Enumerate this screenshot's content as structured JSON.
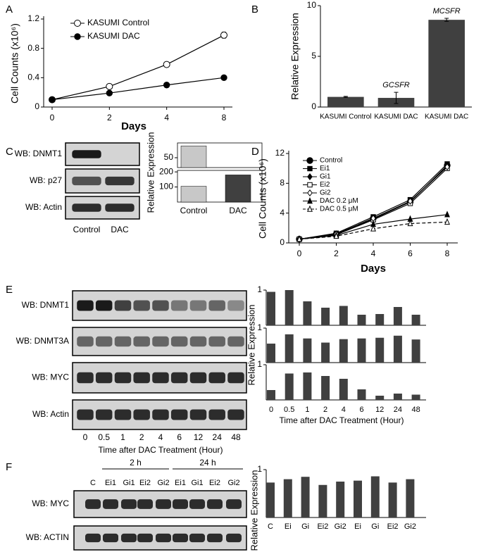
{
  "chart_data": [
    {
      "label": "A",
      "type": "line",
      "ylabel": "Cell Counts (x10⁶)",
      "xlabel": "Days",
      "categories": [
        "0",
        "2",
        "4",
        "8"
      ],
      "ylim": [
        0,
        1.2
      ],
      "yticks": [
        0,
        0.4,
        0.8,
        1.2
      ],
      "legend": "upper left",
      "series": [
        {
          "name": "KASUMI Control",
          "color": "#000000",
          "marker": "open-circle",
          "values": [
            0.1,
            0.28,
            0.58,
            0.98
          ],
          "errors": [
            0,
            0.02,
            0.02,
            0.04
          ]
        },
        {
          "name": "KASUMI DAC",
          "color": "#000000",
          "marker": "circle",
          "values": [
            0.1,
            0.19,
            0.3,
            0.4
          ],
          "errors": [
            0,
            0.01,
            0.01,
            0.01
          ]
        }
      ]
    },
    {
      "label": "B",
      "type": "bar",
      "ylabel": "Relative Expression",
      "categories": [
        "KASUMI Control",
        "KASUMI DAC",
        "KASUMI DAC"
      ],
      "values": [
        1,
        0.9,
        8.6
      ],
      "errors": [
        0.05,
        0.55,
        0.15
      ],
      "annotations": [
        null,
        "GCSFR",
        "MCSFR"
      ],
      "color": "#404040",
      "ylim": [
        0,
        10
      ],
      "yticks": [
        0,
        5,
        10
      ]
    },
    {
      "label": "C",
      "type": "blot-bar",
      "blot": {
        "rows": [
          "WB: DNMT1",
          "WB: p27",
          "WB: Actin"
        ]
      },
      "categories": [
        "Control",
        "DAC"
      ],
      "colors": [
        "#c8c8c8",
        "#404040"
      ],
      "ylabel": "Relative Expression",
      "panels": [
        {
          "values": [
            110,
            0
          ],
          "ylim": [
            0,
            125
          ],
          "yticks": [
            50
          ]
        },
        {
          "values": [
            105,
            180
          ],
          "ylim": [
            0,
            210
          ],
          "yticks": [
            100,
            200
          ]
        }
      ]
    },
    {
      "label": "D",
      "type": "line",
      "ylabel": "Cell Counts (x10⁶)",
      "xlabel": "Days",
      "categories": [
        "0",
        "2",
        "4",
        "6",
        "8"
      ],
      "ylim": [
        0,
        12
      ],
      "yticks": [
        0,
        4,
        8,
        12
      ],
      "legend": "upper left",
      "series": [
        {
          "name": "Control",
          "color": "#000000",
          "marker": "circle",
          "values": [
            0.5,
            1.2,
            3.3,
            5.5,
            10.4
          ]
        },
        {
          "name": "Ei1",
          "color": "#000000",
          "marker": "square",
          "values": [
            0.5,
            1.3,
            3.5,
            5.8,
            10.6
          ]
        },
        {
          "name": "Gi1",
          "color": "#000000",
          "marker": "diamond",
          "values": [
            0.5,
            1.2,
            3.2,
            5.5,
            10.3
          ]
        },
        {
          "name": "Ei2",
          "color": "#000000",
          "marker": "open-square",
          "values": [
            0.5,
            1.1,
            3.1,
            5.3,
            10.0
          ]
        },
        {
          "name": "Gi2",
          "color": "#000000",
          "marker": "open-diamond",
          "values": [
            0.5,
            1.2,
            3.3,
            5.6,
            10.2
          ]
        },
        {
          "name": "DAC 0.2 μM",
          "color": "#000000",
          "marker": "triangle",
          "values": [
            0.5,
            1.0,
            2.5,
            3.2,
            3.8
          ]
        },
        {
          "name": "DAC 0.5 μM",
          "color": "#000000",
          "marker": "open-triangle",
          "dash": true,
          "values": [
            0.5,
            0.9,
            1.9,
            2.6,
            2.8
          ]
        }
      ]
    },
    {
      "label": "E",
      "type": "blot-bar",
      "blot": {
        "rows": [
          "WB: DNMT1",
          "WB: DNMT3A",
          "WB: MYC",
          "WB: Actin"
        ]
      },
      "categories": [
        "0",
        "0.5",
        "1",
        "2",
        "4",
        "6",
        "12",
        "24",
        "48"
      ],
      "xlabel": "Time after DAC Treatment (Hour)",
      "ylabel": "Relative Expression",
      "color": "#404040",
      "panels": [
        {
          "values": [
            0.95,
            1.0,
            0.68,
            0.5,
            0.55,
            0.3,
            0.32,
            0.52,
            0.3
          ],
          "ylim": [
            0,
            1
          ],
          "yticks": [
            1
          ]
        },
        {
          "values": [
            0.55,
            0.82,
            0.7,
            0.58,
            0.68,
            0.7,
            0.72,
            0.78,
            0.67
          ],
          "ylim": [
            0,
            1
          ],
          "yticks": [
            1
          ]
        },
        {
          "values": [
            0.28,
            0.75,
            0.78,
            0.68,
            0.6,
            0.3,
            0.12,
            0.18,
            0.15
          ],
          "ylim": [
            0,
            1
          ],
          "yticks": [
            1
          ]
        }
      ]
    },
    {
      "label": "F",
      "type": "blot-bar",
      "blot": {
        "rows": [
          "WB: MYC",
          "WB: ACTIN"
        ],
        "lanes": [
          "C",
          "Ei1",
          "Gi1",
          "Ei2",
          "Gi2",
          "Ei1",
          "Gi1",
          "Ei2",
          "Gi2"
        ],
        "groups": [
          "2 h",
          "24 h"
        ]
      },
      "categories": [
        "C",
        "Ei",
        "Gi",
        "Ei2",
        "Gi2",
        "Ei",
        "Gi",
        "Ei2",
        "Gi2"
      ],
      "ylabel": "Relative Expression",
      "color": "#404040",
      "panels": [
        {
          "values": [
            0.73,
            0.8,
            0.85,
            0.68,
            0.75,
            0.77,
            0.86,
            0.73,
            0.8
          ],
          "ylim": [
            0,
            1
          ],
          "yticks": [
            1
          ]
        }
      ]
    }
  ]
}
